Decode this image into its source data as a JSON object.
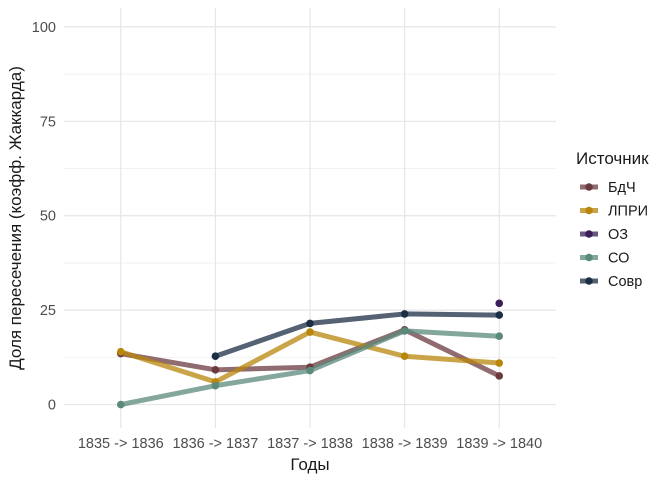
{
  "chart_data": {
    "type": "line",
    "xlabel": "Годы",
    "ylabel": "Доля пересечения (коэфф. Жаккарда)",
    "categories": [
      "1835 -> 1836",
      "1836 -> 1837",
      "1837 -> 1838",
      "1838 -> 1839",
      "1839 -> 1840"
    ],
    "y_ticks": [
      "0",
      "25",
      "50",
      "75",
      "100"
    ],
    "ylim": [
      0,
      100
    ],
    "grid": true,
    "legend": {
      "title": "Источник",
      "position": "right"
    },
    "series": [
      {
        "name": "БдЧ",
        "color": "#6b3a3f",
        "values": [
          13.5,
          9.2,
          9.9,
          19.8,
          7.6
        ]
      },
      {
        "name": "ЛПРИ",
        "color": "#b8860b",
        "values": [
          14.0,
          6.0,
          19.2,
          12.8,
          11.0
        ]
      },
      {
        "name": "ОЗ",
        "color": "#3b1f5a",
        "values": [
          null,
          null,
          null,
          null,
          26.8
        ]
      },
      {
        "name": "СО",
        "color": "#5b8a7c",
        "values": [
          0.0,
          5.0,
          9.0,
          19.5,
          18.1
        ]
      },
      {
        "name": "Совр",
        "color": "#1c2e45",
        "values": [
          null,
          12.8,
          21.5,
          24.0,
          23.7
        ]
      }
    ]
  }
}
